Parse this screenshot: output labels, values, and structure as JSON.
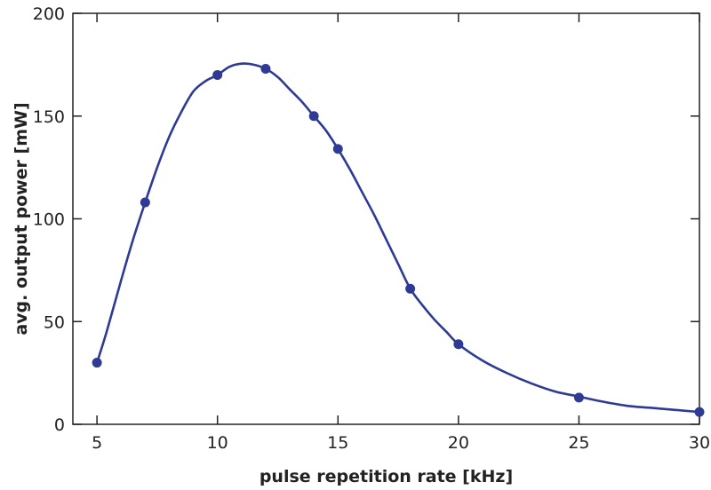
{
  "chart_data": {
    "type": "line",
    "title": "",
    "xlabel": "pulse repetition rate [kHz]",
    "ylabel": "avg. output power [mW]",
    "xlim": [
      4,
      30
    ],
    "ylim": [
      0,
      200
    ],
    "xticks": [
      5,
      10,
      15,
      20,
      25,
      30
    ],
    "yticks": [
      0,
      50,
      100,
      150,
      200
    ],
    "grid": false,
    "series": [
      {
        "type": "scatter",
        "color": "#2e3a94",
        "x": [
          5,
          7,
          10,
          12,
          14,
          15,
          18,
          20,
          25,
          30
        ],
        "y": [
          30,
          108,
          170,
          173,
          150,
          134,
          66,
          39,
          13,
          6
        ]
      },
      {
        "type": "line",
        "color": "#2e3a94",
        "x": [
          5,
          5.4,
          6,
          6.5,
          7,
          7.5,
          8,
          8.5,
          9,
          9.5,
          10,
          10.5,
          11,
          11.5,
          12,
          12.5,
          13,
          13.5,
          14,
          14.5,
          15,
          15.5,
          16,
          16.5,
          17,
          17.5,
          18,
          18.5,
          19,
          19.5,
          20,
          21,
          22,
          23,
          24,
          25,
          26,
          27,
          28,
          29,
          30
        ],
        "y": [
          30,
          45,
          70,
          90,
          108,
          125,
          140,
          152,
          162,
          167,
          170,
          174,
          175.5,
          175,
          173,
          169,
          163,
          157,
          150,
          143,
          134,
          124,
          113,
          102,
          90,
          78,
          66,
          58,
          51,
          45,
          39,
          31,
          25,
          20,
          16,
          13.5,
          11,
          9,
          8,
          7,
          6
        ]
      }
    ]
  }
}
